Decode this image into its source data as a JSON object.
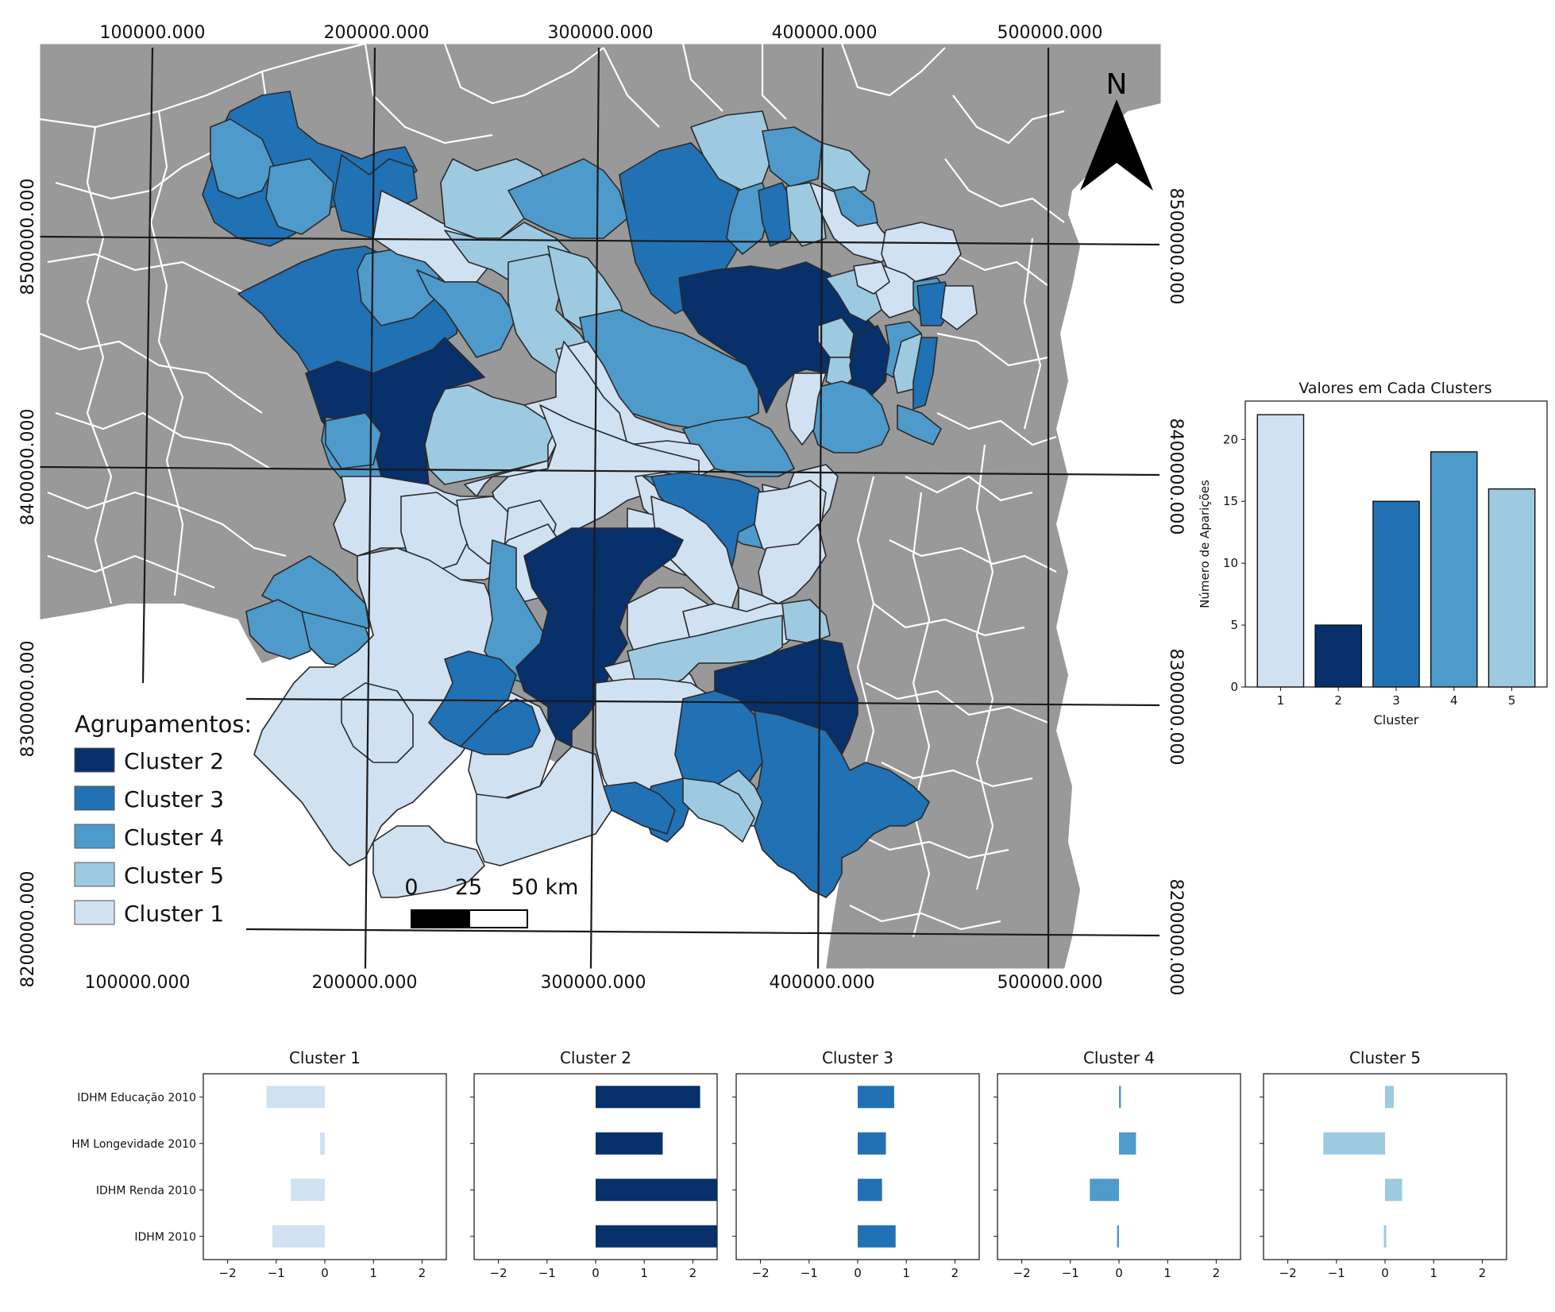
{
  "map": {
    "x_ticks": [
      "100000.000",
      "200000.000",
      "300000.000",
      "400000.000",
      "500000.000"
    ],
    "y_ticks": [
      "8500000.000",
      "8400000.000",
      "8300000.000",
      "8200000.000"
    ],
    "north_label": "N",
    "legend": {
      "title": "Agrupamentos:",
      "items": [
        {
          "label": "Cluster 2",
          "color": "#08306b"
        },
        {
          "label": "Cluster 3",
          "color": "#2171b5"
        },
        {
          "label": "Cluster 4",
          "color": "#4e9acb"
        },
        {
          "label": "Cluster 5",
          "color": "#9ecae1"
        },
        {
          "label": "Cluster 1",
          "color": "#d0e1f2"
        }
      ]
    },
    "scale_bar": {
      "labels": [
        "0",
        "25",
        "50 km"
      ]
    },
    "colors": {
      "background": "#999999",
      "boundary": "#ffffff",
      "outline": "#2a2a2a"
    }
  },
  "chart_data": [
    {
      "type": "bar",
      "title": "Valores em Cada Clusters",
      "xlabel": "Cluster",
      "ylabel": "Número de Aparições",
      "categories": [
        "1",
        "2",
        "3",
        "4",
        "5"
      ],
      "values": [
        22,
        5,
        15,
        19,
        16
      ],
      "colors": [
        "#d0e1f2",
        "#08306b",
        "#2171b5",
        "#4e9acb",
        "#9ecae1"
      ],
      "ylim": [
        0,
        23.1
      ],
      "yticks": [
        0,
        5,
        10,
        15,
        20
      ]
    },
    {
      "type": "bar",
      "orientation": "horizontal",
      "categories": [
        "IDHM Educação 2010",
        "HM Longevidade 2010",
        "IDHM Renda 2010",
        "IDHM 2010"
      ],
      "xlim": [
        -2.5,
        2.5
      ],
      "xticks": [
        -2,
        -1,
        0,
        1,
        2
      ],
      "xtick_labels": [
        "−2",
        "−1",
        "0",
        "1",
        "2"
      ],
      "series": [
        {
          "name": "Cluster 1",
          "color": "#d0e1f2",
          "values": [
            -1.2,
            -0.1,
            -0.7,
            -1.08
          ]
        },
        {
          "name": "Cluster 2",
          "color": "#08306b",
          "values": [
            2.15,
            1.38,
            2.5,
            2.5
          ]
        },
        {
          "name": "Cluster 3",
          "color": "#2171b5",
          "values": [
            0.75,
            0.58,
            0.5,
            0.78
          ]
        },
        {
          "name": "Cluster 4",
          "color": "#4e9acb",
          "values": [
            0.04,
            0.35,
            -0.6,
            -0.04
          ]
        },
        {
          "name": "Cluster 5",
          "color": "#9ecae1",
          "values": [
            0.18,
            -1.27,
            0.35,
            0.0
          ]
        }
      ]
    }
  ]
}
